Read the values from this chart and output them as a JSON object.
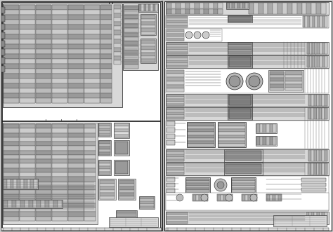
{
  "bg": "#c8c8c8",
  "panel_bg": "#ffffff",
  "dark": "#1a1a1a",
  "mid": "#666666",
  "light": "#aaaaaa",
  "vlight": "#d8d8d8",
  "stripe_dark": "#888888",
  "stripe_light": "#cccccc"
}
